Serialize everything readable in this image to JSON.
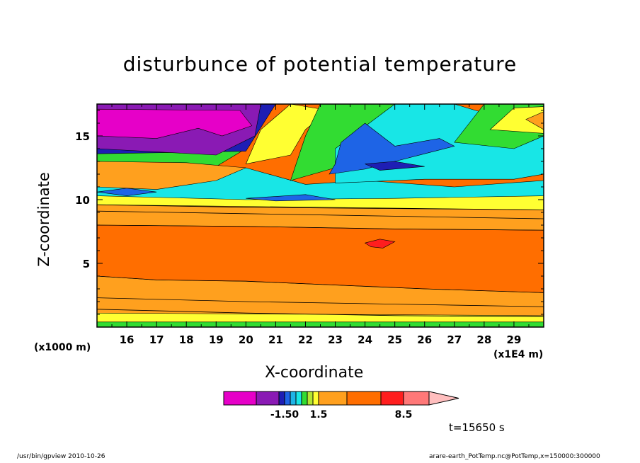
{
  "chart_data": {
    "type": "heatmap",
    "title": "disturbunce of potential temperature",
    "xlabel": "X-coordinate",
    "ylabel": "Z-coordinate",
    "x_unit_note": "(x1000 m)",
    "x_scale_note": "(x1E4 m)",
    "x_ticks": [
      16,
      17,
      18,
      19,
      20,
      21,
      22,
      23,
      24,
      25,
      26,
      27,
      28,
      29
    ],
    "y_ticks": [
      5,
      10,
      15
    ],
    "xlim": [
      15,
      30
    ],
    "ylim": [
      0,
      17.5
    ],
    "colorbar": {
      "colors": [
        "#e600c8",
        "#8a1ab4",
        "#1e1eb4",
        "#1e64e6",
        "#1eb4e6",
        "#18e6e6",
        "#32dc32",
        "#b4e632",
        "#ffff32",
        "#ffa01e",
        "#ff6e00",
        "#ff1e1e",
        "#ff7878",
        "#ffbebe"
      ],
      "tick_labels": [
        "-1.50",
        "1.5",
        "8.5"
      ]
    },
    "layers": [
      {
        "color": "#32dc32",
        "points": [
          [
            15,
            0
          ],
          [
            30,
            0
          ],
          [
            30,
            0.6
          ],
          [
            15,
            0.6
          ]
        ]
      },
      {
        "color": "#ffff32",
        "points": [
          [
            15,
            0.4
          ],
          [
            30,
            0.4
          ],
          [
            30,
            1.1
          ],
          [
            15,
            1.4
          ]
        ]
      },
      {
        "color": "#ffa01e",
        "points": [
          [
            15,
            1.1
          ],
          [
            30,
            0.9
          ],
          [
            30,
            9.5
          ],
          [
            15,
            9.9
          ]
        ]
      },
      {
        "color": "#ff6e00",
        "points": [
          [
            15,
            4.0
          ],
          [
            17,
            3.7
          ],
          [
            20,
            3.6
          ],
          [
            23,
            3.3
          ],
          [
            26,
            3.0
          ],
          [
            30,
            2.7
          ],
          [
            30,
            7.6
          ],
          [
            25,
            7.7
          ],
          [
            20,
            7.9
          ],
          [
            15,
            8.0
          ]
        ]
      },
      {
        "color": "#ff1e1e",
        "points": [
          [
            24,
            6.6
          ],
          [
            24.5,
            6.9
          ],
          [
            25,
            6.7
          ],
          [
            24.6,
            6.2
          ],
          [
            24.2,
            6.3
          ]
        ]
      },
      {
        "color": "#ffff32",
        "points": [
          [
            15,
            9.6
          ],
          [
            30,
            9.2
          ],
          [
            30,
            10.4
          ],
          [
            15,
            10.6
          ]
        ]
      },
      {
        "color": "#18e6e6",
        "points": [
          [
            15,
            10.3
          ],
          [
            20,
            10.0
          ],
          [
            25,
            10.1
          ],
          [
            30,
            10.3
          ],
          [
            30,
            11.5
          ],
          [
            27,
            11.0
          ],
          [
            24,
            11.5
          ],
          [
            22,
            11.2
          ],
          [
            20,
            12.5
          ],
          [
            15,
            12.4
          ]
        ]
      },
      {
        "color": "#1e64e6",
        "points": [
          [
            15,
            10.6
          ],
          [
            16,
            10.9
          ],
          [
            17,
            10.6
          ],
          [
            16,
            10.3
          ]
        ]
      },
      {
        "color": "#1e64e6",
        "points": [
          [
            20,
            10.1
          ],
          [
            22,
            10.4
          ],
          [
            23,
            10.0
          ],
          [
            21,
            9.9
          ]
        ]
      },
      {
        "color": "#32dc32",
        "points": [
          [
            15,
            12.0
          ],
          [
            19,
            12.6
          ],
          [
            20,
            14.0
          ],
          [
            15,
            14.2
          ]
        ]
      },
      {
        "color": "#ffa01e",
        "points": [
          [
            15,
            11.0
          ],
          [
            17,
            10.8
          ],
          [
            19,
            11.5
          ],
          [
            20,
            12.5
          ],
          [
            18,
            12.9
          ],
          [
            15,
            13.0
          ]
        ]
      },
      {
        "color": "#ffff32",
        "points": [
          [
            20,
            12.8
          ],
          [
            21.5,
            13.5
          ],
          [
            22,
            15.5
          ],
          [
            22.8,
            17.0
          ],
          [
            21.5,
            17.5
          ],
          [
            20.5,
            15.5
          ]
        ]
      },
      {
        "color": "#32dc32",
        "points": [
          [
            21.5,
            11.5
          ],
          [
            23,
            12.5
          ],
          [
            24,
            13.8
          ],
          [
            25,
            15.0
          ],
          [
            26,
            17.5
          ],
          [
            22.5,
            17.5
          ],
          [
            22,
            15.0
          ]
        ]
      },
      {
        "color": "#18e6e6",
        "points": [
          [
            23,
            11.3
          ],
          [
            26,
            11.6
          ],
          [
            29,
            11.6
          ],
          [
            30,
            12.0
          ],
          [
            30,
            16.5
          ],
          [
            28,
            16.8
          ],
          [
            27,
            17.5
          ],
          [
            25,
            17.5
          ],
          [
            23,
            14.0
          ]
        ]
      },
      {
        "color": "#1e64e6",
        "points": [
          [
            22.8,
            12.0
          ],
          [
            24,
            12.4
          ],
          [
            25,
            13.0
          ],
          [
            26,
            13.6
          ],
          [
            27,
            14.2
          ],
          [
            26.5,
            14.8
          ],
          [
            25,
            14.2
          ],
          [
            24,
            16.0
          ],
          [
            23.2,
            14.5
          ],
          [
            23,
            12.8
          ]
        ]
      },
      {
        "color": "#1e1eb4",
        "points": [
          [
            24,
            12.8
          ],
          [
            25,
            13.0
          ],
          [
            26,
            12.6
          ],
          [
            24.5,
            12.3
          ]
        ]
      },
      {
        "color": "#32dc32",
        "points": [
          [
            27,
            14.5
          ],
          [
            28,
            17.5
          ],
          [
            30,
            17.5
          ],
          [
            30,
            15.0
          ],
          [
            29,
            14.0
          ]
        ]
      },
      {
        "color": "#ffff32",
        "points": [
          [
            28.2,
            15.5
          ],
          [
            29,
            17.2
          ],
          [
            30,
            17.3
          ],
          [
            30,
            15.2
          ]
        ]
      },
      {
        "color": "#ffa01e",
        "points": [
          [
            29.4,
            16.3
          ],
          [
            30,
            16.9
          ],
          [
            30,
            15.5
          ]
        ]
      },
      {
        "color": "#1e1eb4",
        "points": [
          [
            15,
            13.6
          ],
          [
            20,
            13.8
          ],
          [
            21,
            17.5
          ],
          [
            15,
            17.5
          ]
        ]
      },
      {
        "color": "#8a1ab4",
        "points": [
          [
            15,
            14.0
          ],
          [
            19,
            13.5
          ],
          [
            20.3,
            15.0
          ],
          [
            20.5,
            17.5
          ],
          [
            15,
            17.5
          ]
        ]
      },
      {
        "color": "#e600c8",
        "points": [
          [
            15,
            15.0
          ],
          [
            17,
            14.8
          ],
          [
            18.4,
            15.6
          ],
          [
            19.2,
            15.0
          ],
          [
            20.2,
            15.8
          ],
          [
            19.8,
            17.0
          ],
          [
            15,
            17.1
          ]
        ]
      }
    ],
    "contour_lines": [
      [
        [
          15,
          1.4
        ],
        [
          20,
          1.1
        ],
        [
          25,
          0.9
        ],
        [
          30,
          0.8
        ]
      ],
      [
        [
          15,
          2.3
        ],
        [
          20,
          2.0
        ],
        [
          25,
          1.8
        ],
        [
          30,
          1.6
        ]
      ],
      [
        [
          15,
          4.0
        ],
        [
          17,
          3.7
        ],
        [
          20,
          3.6
        ],
        [
          23,
          3.3
        ],
        [
          26,
          3.0
        ],
        [
          30,
          2.7
        ]
      ],
      [
        [
          15,
          8.0
        ],
        [
          20,
          7.9
        ],
        [
          25,
          7.7
        ],
        [
          30,
          7.6
        ]
      ],
      [
        [
          15,
          9.1
        ],
        [
          20,
          8.9
        ],
        [
          25,
          8.7
        ],
        [
          30,
          8.5
        ]
      ],
      [
        [
          15,
          9.6
        ],
        [
          20,
          9.4
        ],
        [
          25,
          9.3
        ],
        [
          30,
          9.2
        ]
      ]
    ]
  },
  "labels": {
    "time": "t=15650 s",
    "footer_left": "/usr/bin/gpview  2010-10-26",
    "footer_right": "arare-earth_PotTemp.nc@PotTemp,x=150000:300000"
  }
}
